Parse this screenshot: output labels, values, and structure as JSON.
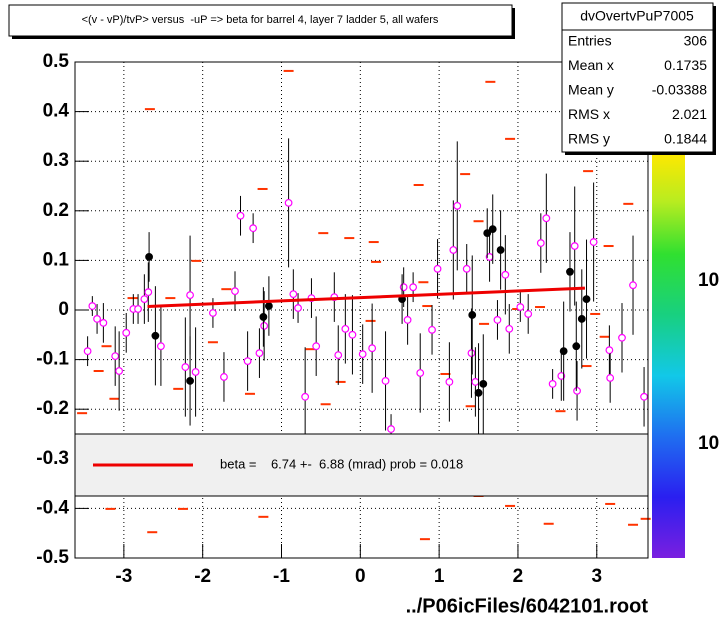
{
  "chart_data": {
    "type": "scatter",
    "title": "<(v - vP)/tvP> versus  -uP => beta for barrel 4, layer 7 ladder 5, all wafers",
    "x_label": "../P06icFiles/6042101.root",
    "xlim": [
      -3.62,
      3.65
    ],
    "xticks": [
      -3,
      -2,
      -1,
      0,
      1,
      2,
      3
    ],
    "ylim": [
      -0.5,
      0.5
    ],
    "yticks": [
      0.5,
      0.4,
      0.3,
      0.2,
      0.1,
      0,
      -0.1,
      -0.2,
      -0.3,
      -0.4,
      -0.5
    ],
    "grid": true,
    "stats": {
      "name": "dvOvertvPuP7005",
      "rows": [
        [
          "Entries",
          "306"
        ],
        [
          "Mean x",
          "0.1735"
        ],
        [
          "Mean y",
          "-0.03388"
        ],
        [
          "RMS x",
          "2.021"
        ],
        [
          "RMS y",
          "0.1844"
        ]
      ]
    },
    "colorbar_labels": [
      "10",
      "10"
    ],
    "series": [
      {
        "marker": "dash",
        "color": "#ff3300",
        "x": [
          -0.91,
          1.65,
          -2.67,
          1.9,
          -1.24,
          0.74,
          1.33,
          2.89,
          -0.47,
          -0.14,
          0.17,
          -2.08,
          0.2,
          1.5,
          3.15,
          3.4,
          -2.89,
          -2.41,
          -1.7,
          -0.38,
          0.8,
          0.85,
          1.99,
          2.28,
          2.98,
          -3.22,
          -1.87,
          -0.63,
          0.13,
          1.57,
          3.1,
          -3.32,
          -2.31,
          -0.25,
          1.08,
          2.87,
          -3.12,
          -1.4,
          1.4,
          2.54,
          -3.53,
          -0.44,
          -3.17,
          -2.25,
          -1.23,
          -2.64,
          0.82,
          2.39,
          3.62,
          1.5,
          1.9,
          3.17,
          3.46
        ],
        "values": [
          0.482,
          0.46,
          0.405,
          0.345,
          0.244,
          0.252,
          0.274,
          0.28,
          0.155,
          0.145,
          0.137,
          0.099,
          0.097,
          0.179,
          0.129,
          0.214,
          0.024,
          0.024,
          0.042,
          0.022,
          0.056,
          0.008,
          0.002,
          0.006,
          -0.008,
          -0.073,
          -0.065,
          -0.079,
          -0.022,
          -0.028,
          -0.054,
          -0.123,
          -0.159,
          -0.145,
          -0.129,
          -0.113,
          -0.179,
          -0.169,
          -0.194,
          -0.204,
          -0.208,
          -0.19,
          -0.401,
          -0.401,
          -0.417,
          -0.448,
          -0.462,
          -0.431,
          -0.421,
          -0.375,
          -0.395,
          -0.391,
          -0.433
        ]
      },
      {
        "marker": "open-circle",
        "color": "#ff00ff",
        "x": [
          -3.46,
          -3.4,
          -3.34,
          -3.26,
          -3.11,
          -3.06,
          -2.97,
          -2.88,
          -2.82,
          -2.74,
          -2.69,
          -2.53,
          -2.22,
          -2.16,
          -2.09,
          -1.87,
          -1.73,
          -1.59,
          -1.52,
          -1.43,
          -1.36,
          -1.28,
          -1.22,
          -0.91,
          -0.85,
          -0.79,
          -0.7,
          -0.62,
          -0.56,
          -0.33,
          -0.28,
          -0.19,
          -0.1,
          0.03,
          0.15,
          0.32,
          0.39,
          0.55,
          0.6,
          0.67,
          0.76,
          0.91,
          0.98,
          1.13,
          1.18,
          1.23,
          1.35,
          1.41,
          1.46,
          1.64,
          1.74,
          1.84,
          1.89,
          2.03,
          2.13,
          2.29,
          2.36,
          2.44,
          2.55,
          2.72,
          2.75,
          2.96,
          3.16,
          3.17,
          3.32,
          3.46,
          3.6
        ],
        "values": [
          -0.083,
          0.008,
          -0.018,
          -0.026,
          -0.093,
          -0.123,
          -0.046,
          0.002,
          0.002,
          0.022,
          0.036,
          -0.073,
          -0.115,
          0.03,
          -0.125,
          -0.006,
          -0.135,
          0.038,
          0.19,
          -0.103,
          0.165,
          -0.087,
          -0.032,
          0.216,
          0.032,
          0.004,
          -0.175,
          0.024,
          -0.073,
          0.026,
          -0.091,
          -0.038,
          -0.05,
          -0.089,
          -0.077,
          -0.143,
          -0.24,
          0.046,
          -0.02,
          0.046,
          -0.127,
          -0.04,
          0.083,
          -0.145,
          0.121,
          0.21,
          0.083,
          -0.087,
          -0.145,
          0.107,
          -0.02,
          0.071,
          -0.038,
          0.006,
          -0.008,
          0.135,
          0.185,
          -0.149,
          -0.133,
          0.129,
          -0.163,
          0.137,
          -0.081,
          -0.137,
          -0.056,
          0.05,
          -0.175
        ],
        "errors": [
          0.03,
          0.02,
          0.03,
          0.04,
          0.06,
          0.08,
          0.04,
          0.03,
          0.03,
          0.05,
          0.06,
          0.08,
          0.1,
          0.12,
          0.09,
          0.03,
          0.05,
          0.04,
          0.04,
          0.06,
          0.03,
          0.05,
          0.07,
          0.13,
          0.05,
          0.03,
          0.1,
          0.04,
          0.06,
          0.05,
          0.06,
          0.07,
          0.08,
          0.06,
          0.09,
          0.1,
          0.03,
          0.04,
          0.05,
          0.03,
          0.08,
          0.05,
          0.06,
          0.08,
          0.1,
          0.13,
          0.05,
          0.09,
          0.07,
          0.05,
          0.04,
          0.08,
          0.05,
          0.03,
          0.04,
          0.06,
          0.09,
          0.03,
          0.05,
          0.12,
          0.06,
          0.12,
          0.05,
          0.05,
          0.07,
          0.1,
          0.06
        ]
      },
      {
        "marker": "dot",
        "color": "#000000",
        "x": [
          -2.68,
          -2.6,
          -2.16,
          -1.23,
          -1.16,
          0.53,
          1.42,
          1.5,
          1.56,
          1.61,
          1.68,
          1.78,
          2.58,
          2.66,
          2.74,
          2.81,
          2.87
        ],
        "values": [
          0.107,
          -0.052,
          -0.143,
          -0.014,
          0.008,
          0.022,
          -0.01,
          -0.167,
          -0.149,
          0.155,
          0.163,
          0.121,
          -0.083,
          0.077,
          -0.073,
          -0.018,
          0.022
        ],
        "errors": [
          0.05,
          0.1,
          0.09,
          0.06,
          0.06,
          0.05,
          0.12,
          0.1,
          0.1,
          0.05,
          0.07,
          0.08,
          0.1,
          0.08,
          0.09,
          0.1,
          0.12
        ]
      },
      {
        "marker": "line",
        "color": "#ee0000",
        "name": "beta =    6.74 +-  6.88 (mrad) prob = 0.018",
        "x": [
          -2.7,
          2.85
        ],
        "values": [
          0.007,
          0.044
        ]
      }
    ]
  }
}
